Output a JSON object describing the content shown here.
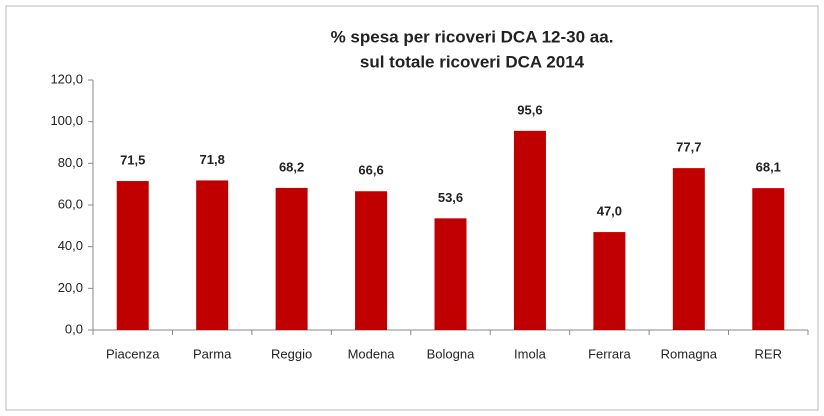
{
  "chart_data": {
    "type": "bar",
    "title": "% spesa per ricoveri DCA 12-30 aa.",
    "subtitle": "sul totale ricoveri DCA 2014",
    "categories": [
      "Piacenza",
      "Parma",
      "Reggio",
      "Modena",
      "Bologna",
      "Imola",
      "Ferrara",
      "Romagna",
      "RER"
    ],
    "values": [
      71.5,
      71.8,
      68.2,
      66.6,
      53.6,
      95.6,
      47.0,
      77.7,
      68.1
    ],
    "value_labels": [
      "71,5",
      "71,8",
      "68,2",
      "66,6",
      "53,6",
      "95,6",
      "47,0",
      "77,7",
      "68,1"
    ],
    "color": "#c00000",
    "ylim": [
      0,
      120
    ],
    "yticks": [
      {
        "value": 0,
        "label": "0,0"
      },
      {
        "value": 20,
        "label": "20,0"
      },
      {
        "value": 40,
        "label": "40,0"
      },
      {
        "value": 60,
        "label": "60,0"
      },
      {
        "value": 80,
        "label": "80,0"
      },
      {
        "value": 100,
        "label": "100,0"
      },
      {
        "value": 120,
        "label": "120,0"
      }
    ],
    "grid": false
  }
}
